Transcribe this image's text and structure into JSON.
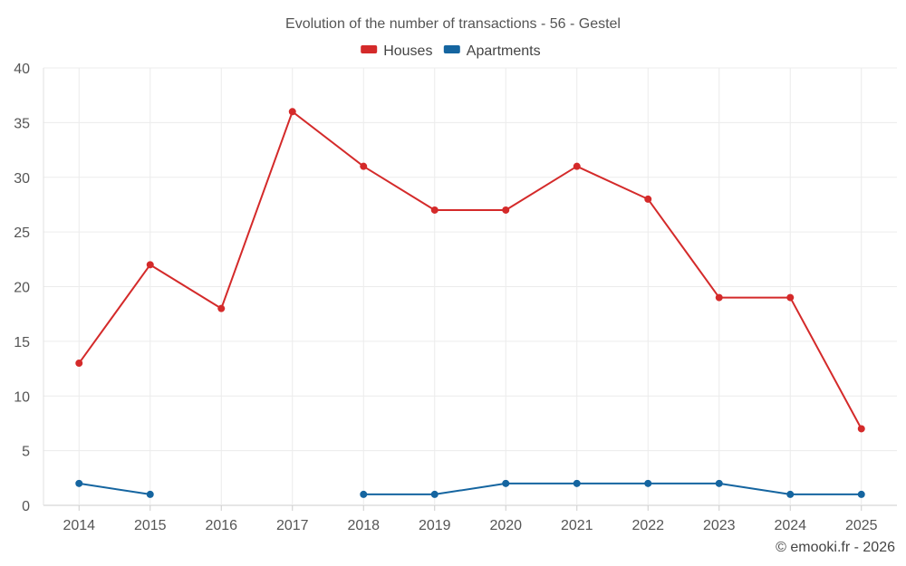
{
  "chart_data": {
    "type": "line",
    "title": "Evolution of the number of transactions - 56 - Gestel",
    "categories": [
      "2014",
      "2015",
      "2016",
      "2017",
      "2018",
      "2019",
      "2020",
      "2021",
      "2022",
      "2023",
      "2024",
      "2025"
    ],
    "series": [
      {
        "name": "Houses",
        "color": "#d42a2a",
        "values": [
          13,
          22,
          18,
          36,
          31,
          27,
          27,
          31,
          28,
          19,
          19,
          7
        ]
      },
      {
        "name": "Apartments",
        "color": "#1565a0",
        "values": [
          2,
          1,
          null,
          null,
          1,
          1,
          2,
          2,
          2,
          2,
          1,
          1
        ]
      }
    ],
    "ylim": [
      0,
      40
    ],
    "yticks": [
      0,
      5,
      10,
      15,
      20,
      25,
      30,
      35,
      40
    ],
    "grid": true,
    "legend": "top-center",
    "xlabel": "",
    "ylabel": ""
  },
  "credit": "© emooki.fr - 2026"
}
